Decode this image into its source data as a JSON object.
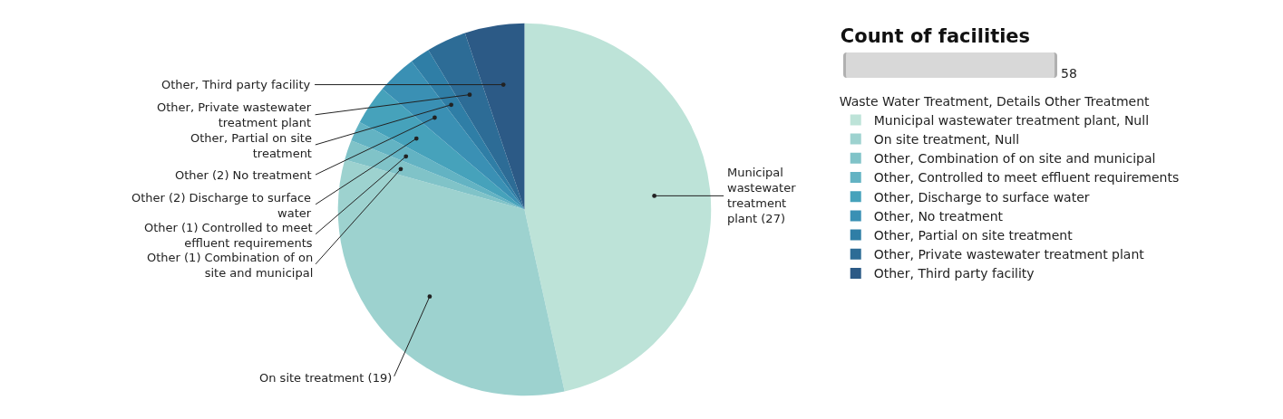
{
  "chart_data": {
    "type": "pie",
    "title": "Count of facilities",
    "legend_title": "Waste Water Treatment, Details Other Treatment",
    "legend": "right",
    "categories": [
      "Municipal wastewater treatment plant, Null",
      "On site treatment, Null",
      "Other, Combination of on site and municipal",
      "Other, Controlled to meet effluent requirements",
      "Other, Discharge to surface water",
      "Other, No treatment",
      "Other, Partial on site treatment",
      "Other, Private wastewater treatment plant",
      "Other, Third party facility"
    ],
    "values": [
      27,
      19,
      1,
      1,
      2,
      2,
      1,
      2,
      3
    ],
    "colors": [
      "#bde3d8",
      "#9dd2cf",
      "#80c3c8",
      "#63b3c3",
      "#46a2bb",
      "#3a90b4",
      "#2f7ea6",
      "#2d6c96",
      "#2c5a86"
    ],
    "value_labels": [
      "Municipal wastewater treatment plant (27)",
      "On site treatment (19)",
      "Other (1) Combination of on site and municipal",
      "Other (1) Controlled to meet effluent requirements",
      "Other (2) Discharge to surface water",
      "Other (2) No treatment",
      "Other, Partial on site treatment",
      "Other, Private wastewater treatment plant",
      "Other, Third party facility"
    ],
    "annotations": [
      "58"
    ]
  }
}
